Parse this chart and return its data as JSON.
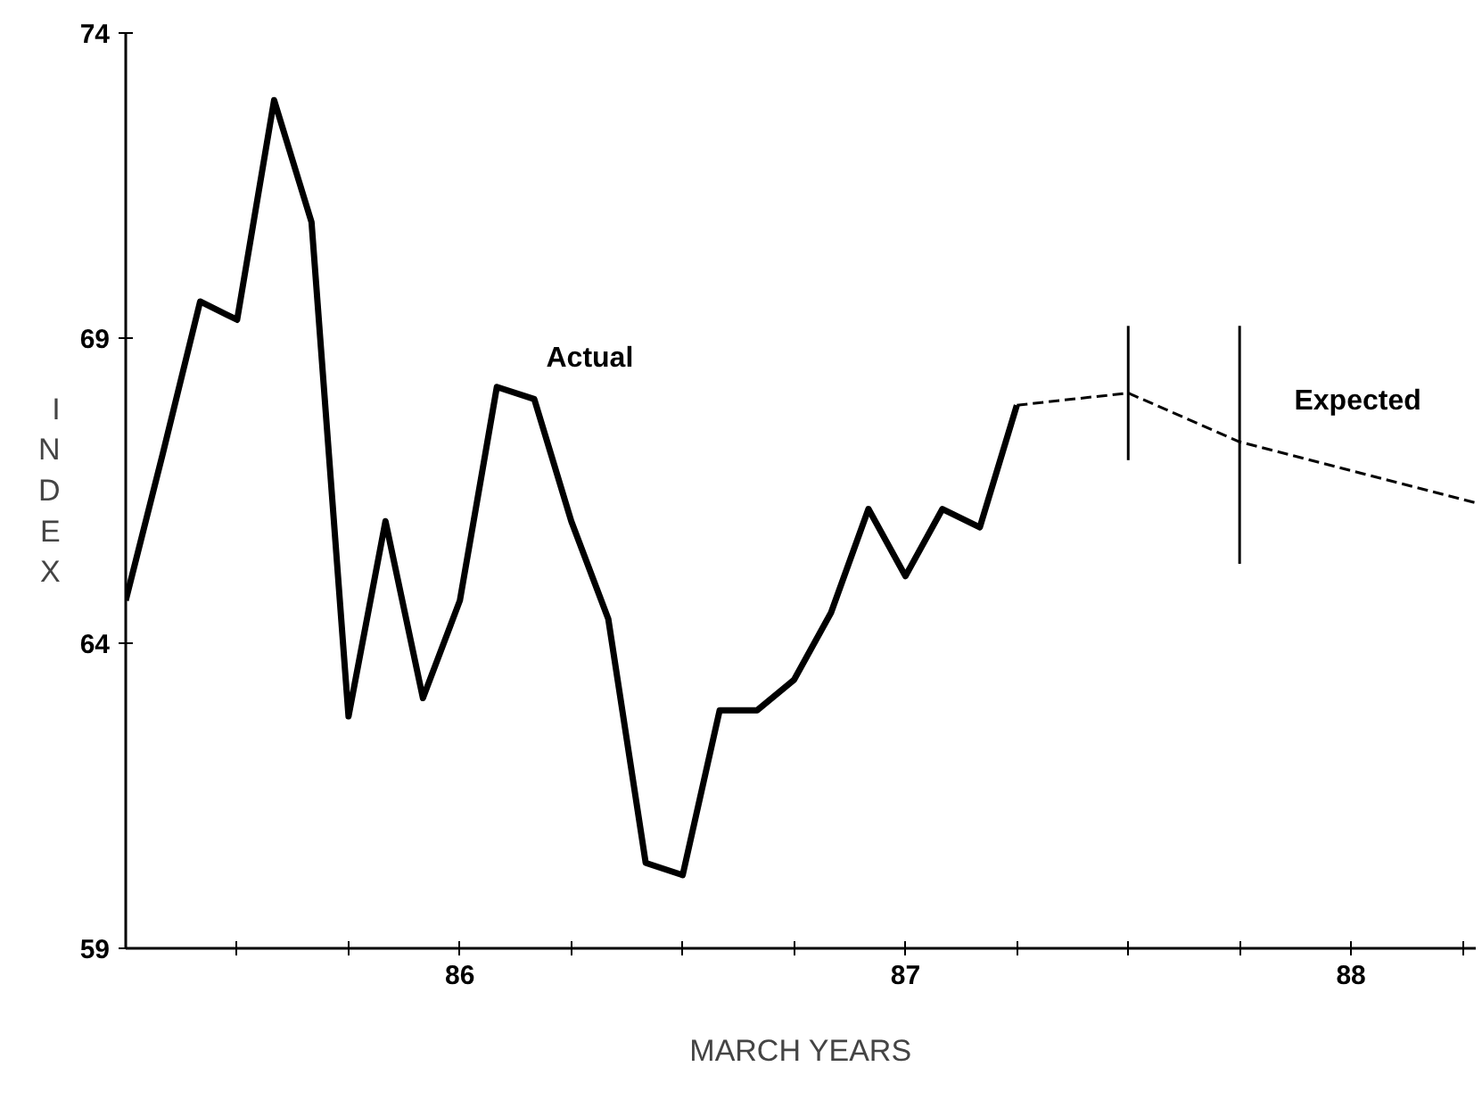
{
  "chart_data": {
    "type": "line",
    "xlabel": "MARCH YEARS",
    "ylabel": "INDEX",
    "xlim": [
      85.25,
      88.28
    ],
    "ylim": [
      59,
      74
    ],
    "yticks": [
      59,
      64,
      69,
      74
    ],
    "xticks": [
      {
        "value": 85.5,
        "label": null
      },
      {
        "value": 85.75,
        "label": null
      },
      86,
      {
        "value": 86.25,
        "label": null
      },
      {
        "value": 86.5,
        "label": null
      },
      {
        "value": 86.75,
        "label": null
      },
      87,
      {
        "value": 87.25,
        "label": null
      },
      {
        "value": 87.5,
        "label": null
      },
      {
        "value": 87.75,
        "label": null
      },
      88,
      {
        "value": 88.25,
        "label": null
      }
    ],
    "grid": false,
    "marker": "none",
    "series": [
      {
        "name": "Actual",
        "color": "#000000",
        "line_style": "solid",
        "x": [
          85.25,
          85.333,
          85.417,
          85.5,
          85.583,
          85.667,
          85.75,
          85.833,
          85.917,
          86.0,
          86.083,
          86.167,
          86.25,
          86.333,
          86.417,
          86.5,
          86.583,
          86.667,
          86.75,
          86.833,
          86.917,
          87.0,
          87.083,
          87.167,
          87.25
        ],
        "values": [
          64.7,
          67.1,
          69.6,
          69.3,
          72.9,
          70.9,
          62.8,
          66.0,
          63.1,
          64.7,
          68.2,
          68.0,
          66.0,
          64.4,
          60.4,
          60.2,
          62.9,
          62.9,
          63.4,
          64.5,
          66.2,
          65.1,
          66.2,
          65.9,
          67.9
        ]
      },
      {
        "name": "Expected",
        "color": "#000000",
        "line_style": "dashed",
        "x": [
          87.25,
          87.5,
          87.75,
          88.28
        ],
        "values": [
          67.9,
          68.1,
          67.3,
          66.3
        ],
        "errors": [
          null,
          [
            67.0,
            69.2
          ],
          [
            65.3,
            69.2
          ],
          null
        ]
      }
    ]
  }
}
